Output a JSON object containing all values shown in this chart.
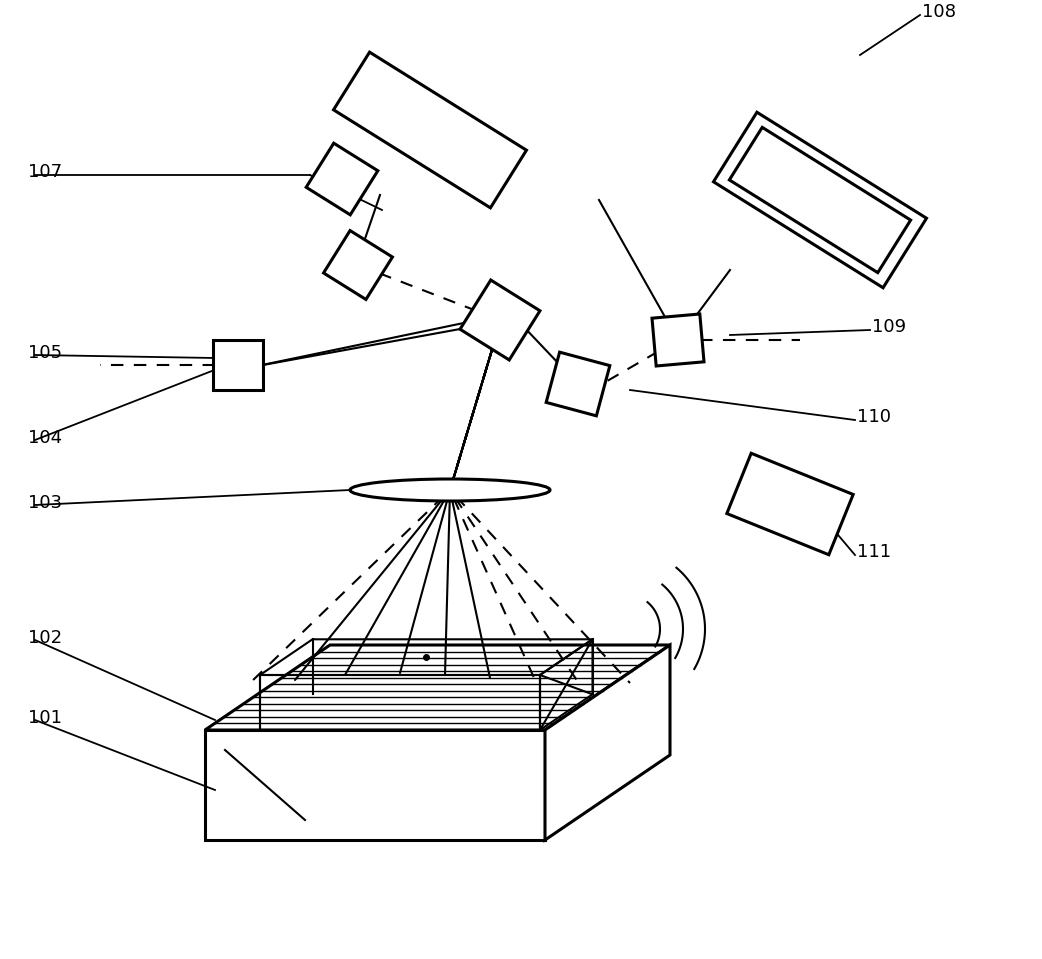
{
  "background_color": "#ffffff",
  "line_color": "#000000",
  "figsize": [
    10.42,
    9.59
  ],
  "dpi": 100,
  "lw_thick": 2.2,
  "lw_thin": 1.5,
  "lw_label": 1.3
}
